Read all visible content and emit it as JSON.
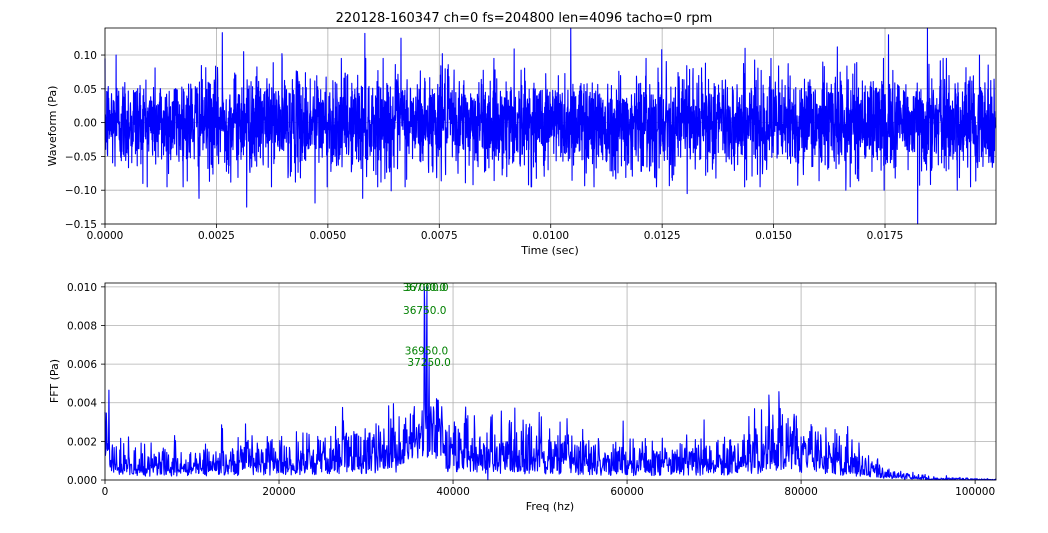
{
  "figure": {
    "title": "220128-160347 ch=0 fs=204800 len=4096 tacho=0 rpm"
  },
  "colors": {
    "trace": "#0000ff",
    "annotation": "#008000",
    "grid": "#b0b0b0",
    "axes": "#000000",
    "background": "#ffffff"
  },
  "chart_data": [
    {
      "type": "line",
      "xlabel": "Time (sec)",
      "ylabel": "Waveform (Pa)",
      "xlim": [
        0.0,
        0.01999
      ],
      "ylim": [
        -0.15,
        0.14
      ],
      "grid": true,
      "x_ticks": [
        0.0,
        0.0025,
        0.005,
        0.0075,
        0.01,
        0.0125,
        0.015,
        0.0175
      ],
      "x_tick_labels": [
        "0.0000",
        "0.0025",
        "0.0050",
        "0.0075",
        "0.0100",
        "0.0125",
        "0.0150",
        "0.0175"
      ],
      "y_ticks": [
        -0.15,
        -0.1,
        -0.05,
        0.0,
        0.05,
        0.1
      ],
      "y_tick_labels": [
        "−0.15",
        "−0.10",
        "−0.05",
        "0.00",
        "0.05",
        "0.10"
      ],
      "series": [
        {
          "samples": 4096,
          "sample_rate_hz": 204800,
          "approx_rms": 0.035,
          "approx_peak_max": 0.144,
          "approx_peak_min": -0.153,
          "peaks": [
            {
              "x": 0.00025,
              "y": 0.1
            },
            {
              "x": 0.00263,
              "y": 0.133
            },
            {
              "x": 0.00311,
              "y": 0.105
            },
            {
              "x": 0.00397,
              "y": 0.102
            },
            {
              "x": 0.00583,
              "y": 0.132
            },
            {
              "x": 0.00664,
              "y": 0.125
            },
            {
              "x": 0.00757,
              "y": 0.102
            },
            {
              "x": 0.00918,
              "y": 0.109
            },
            {
              "x": 0.01045,
              "y": 0.144
            },
            {
              "x": 0.01249,
              "y": 0.108
            },
            {
              "x": 0.01436,
              "y": 0.11
            },
            {
              "x": 0.01643,
              "y": 0.112
            },
            {
              "x": 0.01758,
              "y": 0.13
            },
            {
              "x": 0.01845,
              "y": 0.143
            },
            {
              "x": 0.01962,
              "y": 0.1
            },
            {
              "x": 0.00139,
              "y": -0.095
            },
            {
              "x": 0.00211,
              "y": -0.112
            },
            {
              "x": 0.00318,
              "y": -0.125
            },
            {
              "x": 0.00471,
              "y": -0.119
            },
            {
              "x": 0.00578,
              "y": -0.112
            },
            {
              "x": 0.00642,
              "y": -0.101
            },
            {
              "x": 0.01097,
              "y": -0.095
            },
            {
              "x": 0.01306,
              "y": -0.105
            },
            {
              "x": 0.01662,
              "y": -0.1
            },
            {
              "x": 0.01748,
              "y": -0.1
            },
            {
              "x": 0.01823,
              "y": -0.153
            },
            {
              "x": 0.01912,
              "y": -0.1
            }
          ]
        }
      ]
    },
    {
      "type": "line",
      "xlabel": "Freq (hz)",
      "ylabel": "FFT (Pa)",
      "xlim": [
        0,
        102400
      ],
      "ylim": [
        0.0,
        0.0102
      ],
      "grid": true,
      "x_ticks": [
        0,
        20000,
        40000,
        60000,
        80000,
        100000
      ],
      "x_tick_labels": [
        "0",
        "20000",
        "40000",
        "60000",
        "80000",
        "100000"
      ],
      "y_ticks": [
        0.0,
        0.002,
        0.004,
        0.006,
        0.008,
        0.01
      ],
      "y_tick_labels": [
        "0.000",
        "0.002",
        "0.004",
        "0.006",
        "0.008",
        "0.010"
      ],
      "series": [
        {
          "bin_spacing_hz": 50,
          "envelope": [
            {
              "x": 0,
              "y": 0.0038
            },
            {
              "x": 500,
              "y": 0.0012
            },
            {
              "x": 5000,
              "y": 0.0007
            },
            {
              "x": 15000,
              "y": 0.0009
            },
            {
              "x": 25000,
              "y": 0.0011
            },
            {
              "x": 32000,
              "y": 0.0014
            },
            {
              "x": 35000,
              "y": 0.0017
            },
            {
              "x": 38500,
              "y": 0.0018
            },
            {
              "x": 41000,
              "y": 0.0015
            },
            {
              "x": 50000,
              "y": 0.0012
            },
            {
              "x": 60000,
              "y": 0.0009
            },
            {
              "x": 70000,
              "y": 0.0009
            },
            {
              "x": 76000,
              "y": 0.0014
            },
            {
              "x": 79000,
              "y": 0.0016
            },
            {
              "x": 83000,
              "y": 0.0011
            },
            {
              "x": 87000,
              "y": 0.0007
            },
            {
              "x": 90000,
              "y": 0.00025
            },
            {
              "x": 95000,
              "y": 8e-05
            },
            {
              "x": 102400,
              "y": 2e-05
            }
          ],
          "spikes": [
            {
              "x": 36700,
              "y": 0.01
            },
            {
              "x": 37000,
              "y": 0.01
            },
            {
              "x": 36750,
              "y": 0.0088
            },
            {
              "x": 36950,
              "y": 0.0067
            },
            {
              "x": 37250,
              "y": 0.0061
            },
            {
              "x": 8000,
              "y": 0.0023
            },
            {
              "x": 15300,
              "y": 0.0022
            },
            {
              "x": 34300,
              "y": 0.0026
            },
            {
              "x": 38500,
              "y": 0.0028
            },
            {
              "x": 44300,
              "y": 0.0026
            },
            {
              "x": 48700,
              "y": 0.0027
            },
            {
              "x": 77600,
              "y": 0.0037
            },
            {
              "x": 79200,
              "y": 0.0034
            },
            {
              "x": 44000,
              "y": 0.0
            }
          ]
        }
      ],
      "annotations": [
        {
          "x": 36700,
          "y": 0.01,
          "text": "36700.0"
        },
        {
          "x": 37000,
          "y": 0.01,
          "text": "37000.0"
        },
        {
          "x": 36750,
          "y": 0.0088,
          "text": "36750.0"
        },
        {
          "x": 36950,
          "y": 0.0067,
          "text": "36950.0"
        },
        {
          "x": 37250,
          "y": 0.0061,
          "text": "37250.0"
        }
      ]
    }
  ]
}
